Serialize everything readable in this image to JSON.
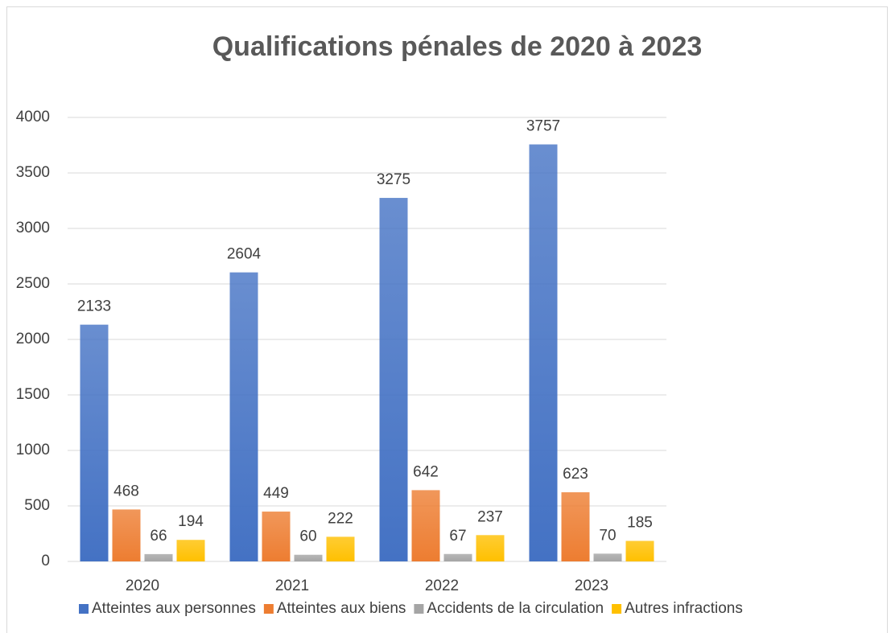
{
  "chart_data": {
    "type": "bar",
    "title": "Qualifications pénales de 2020 à 2023",
    "categories": [
      "2020",
      "2021",
      "2022",
      "2023"
    ],
    "series": [
      {
        "name": "Atteintes aux personnes",
        "color": "#4472c4",
        "values": [
          2133,
          2604,
          3275,
          3757
        ]
      },
      {
        "name": "Atteintes aux biens",
        "color": "#ed7d31",
        "values": [
          468,
          449,
          642,
          623
        ]
      },
      {
        "name": "Accidents de la circulation",
        "color": "#a5a5a5",
        "values": [
          66,
          60,
          67,
          70
        ]
      },
      {
        "name": "Autres infractions",
        "color": "#ffc000",
        "values": [
          194,
          222,
          237,
          185
        ]
      }
    ],
    "ylim": [
      0,
      4000
    ],
    "yticks": [
      0,
      500,
      1000,
      1500,
      2000,
      2500,
      3000,
      3500,
      4000
    ],
    "grid": true,
    "legend": "bottom"
  }
}
